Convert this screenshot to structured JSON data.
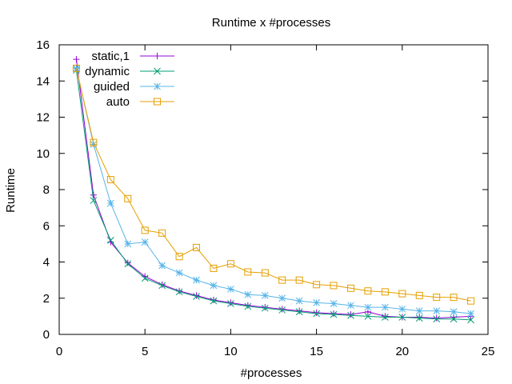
{
  "chart_data": {
    "type": "line",
    "title": "Runtime x #processes",
    "xlabel": "#processes",
    "ylabel": "Runtime",
    "xlim": [
      0,
      25
    ],
    "ylim": [
      0,
      16
    ],
    "xticks": [
      0,
      5,
      10,
      15,
      20,
      25
    ],
    "yticks": [
      0,
      2,
      4,
      6,
      8,
      10,
      12,
      14,
      16
    ],
    "grid": false,
    "legend_position": "top-left",
    "x": [
      1,
      2,
      3,
      4,
      5,
      6,
      7,
      8,
      9,
      10,
      11,
      12,
      13,
      14,
      15,
      16,
      17,
      18,
      19,
      20,
      21,
      22,
      23,
      24
    ],
    "series": [
      {
        "name": "static,1",
        "color": "#9400d3",
        "marker": "plus",
        "values": [
          15.2,
          7.7,
          5.1,
          3.95,
          3.2,
          2.75,
          2.4,
          2.15,
          1.9,
          1.75,
          1.6,
          1.5,
          1.4,
          1.3,
          1.2,
          1.15,
          1.1,
          1.25,
          1.0,
          0.95,
          0.95,
          0.9,
          0.95,
          1.0
        ]
      },
      {
        "name": "dynamic",
        "color": "#009e73",
        "marker": "x",
        "values": [
          14.6,
          7.4,
          5.2,
          3.9,
          3.1,
          2.7,
          2.35,
          2.1,
          1.85,
          1.7,
          1.55,
          1.45,
          1.35,
          1.25,
          1.15,
          1.1,
          1.05,
          1.0,
          0.95,
          0.95,
          0.9,
          0.85,
          0.85,
          0.8
        ]
      },
      {
        "name": "guided",
        "color": "#56b4e9",
        "marker": "star",
        "values": [
          14.7,
          10.5,
          7.25,
          5.0,
          5.1,
          3.8,
          3.4,
          3.0,
          2.7,
          2.5,
          2.2,
          2.15,
          2.0,
          1.85,
          1.75,
          1.7,
          1.6,
          1.5,
          1.5,
          1.4,
          1.3,
          1.3,
          1.25,
          1.15
        ]
      },
      {
        "name": "auto",
        "color": "#e69f00",
        "marker": "square",
        "values": [
          14.7,
          10.6,
          8.55,
          7.5,
          5.75,
          5.6,
          4.3,
          4.8,
          3.65,
          3.9,
          3.45,
          3.4,
          3.0,
          3.0,
          2.75,
          2.7,
          2.55,
          2.4,
          2.35,
          2.25,
          2.15,
          2.05,
          2.05,
          1.85
        ]
      }
    ]
  }
}
